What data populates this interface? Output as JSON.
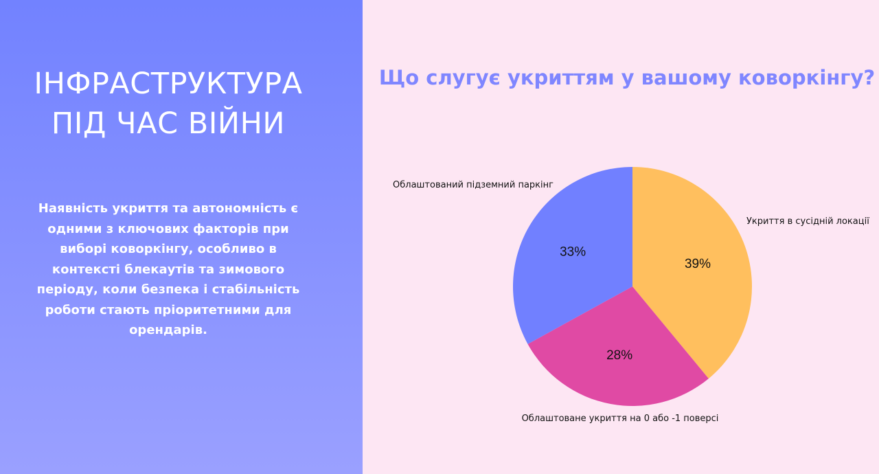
{
  "left": {
    "title_lines": [
      "ІНФРАСТРУКТУРА",
      "ПІД ЧАС ВІЙНИ"
    ],
    "description": "Наявність укриття та автономність є одними з ключових факторів при виборі коворкінгу, особливо в контексті блекаутів та зимового періоду, коли безпека і стабільність роботи стають пріоритетними для орендарів."
  },
  "chart_data": {
    "type": "pie",
    "title": "Що слугує укриттям у вашому коворкінгу?",
    "categories": [
      "Укриття в сусідній локації",
      "Облаштоване укриття на 0 або -1 поверсі",
      "Облаштований підземний паркінг"
    ],
    "values": [
      39,
      28,
      33
    ],
    "labels": [
      "39%",
      "28%",
      "33%"
    ],
    "colors": [
      "#ffbf5e",
      "#e04aa4",
      "#7180ff"
    ]
  },
  "colors": {
    "left_accent": "#7282ff",
    "right_background": "#fde6f3",
    "chart_title": "#7f86ff"
  }
}
